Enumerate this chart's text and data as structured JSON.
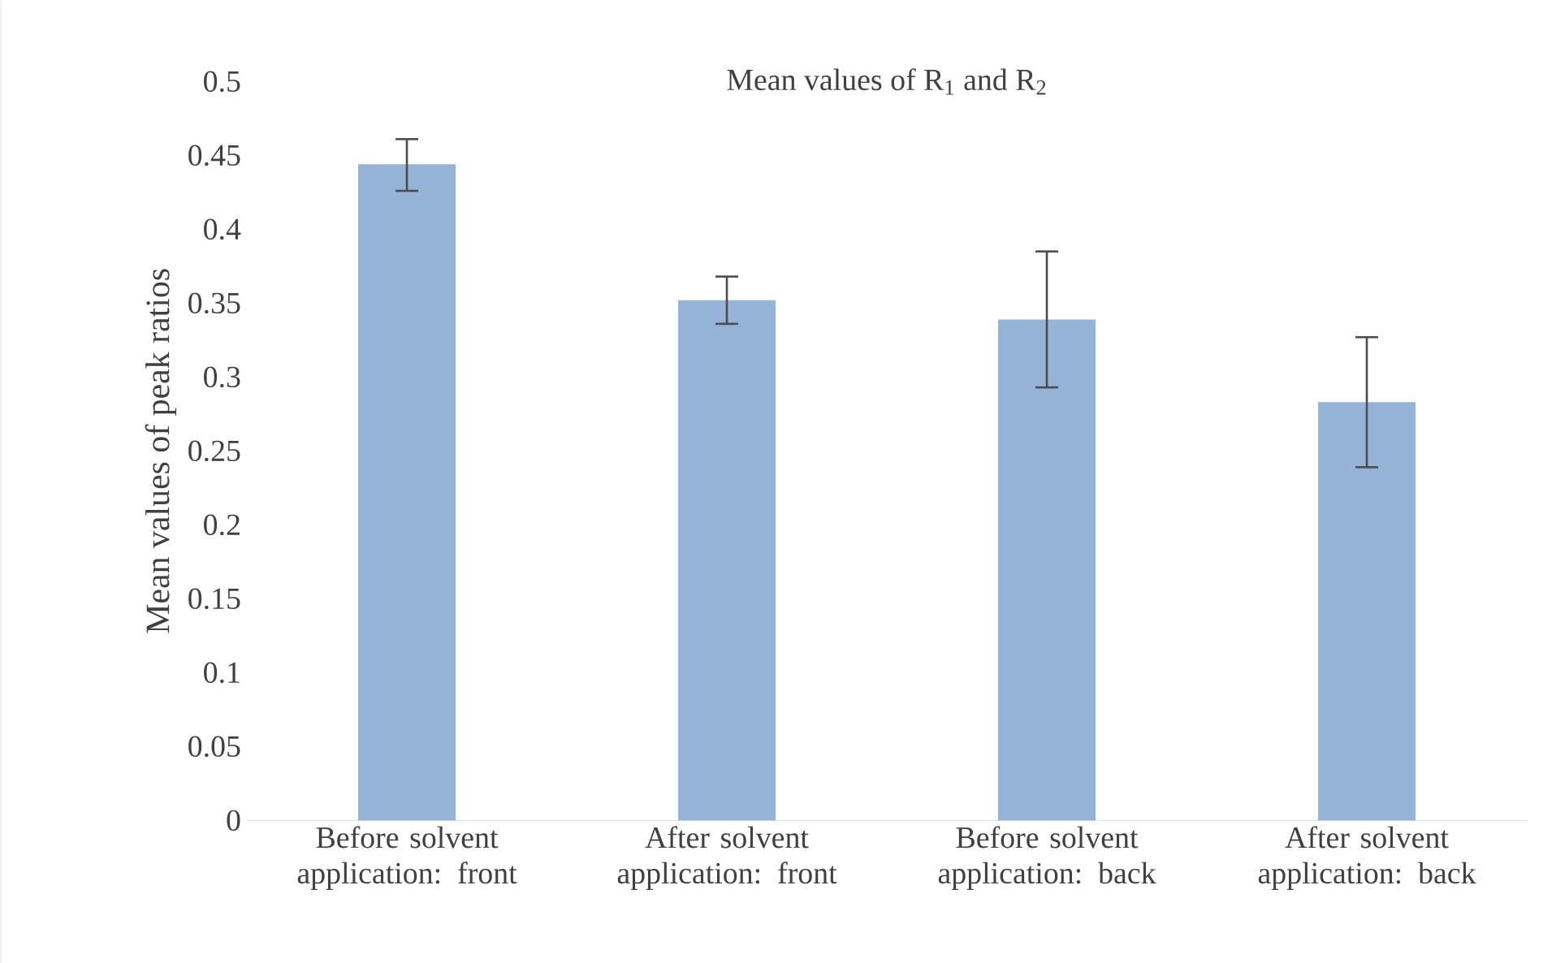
{
  "chart_data": {
    "type": "bar",
    "title": "Mean values of R$_{1}$ and R$_{2}$",
    "ylabel": "Mean values of peak ratios",
    "categories": [
      "Before solvent application: front",
      "After solvent application: front",
      "Before solvent application: back",
      "After solvent application: back"
    ],
    "values": [
      0.444,
      0.352,
      0.339,
      0.283
    ],
    "errors": [
      [
        0.426,
        0.461
      ],
      [
        0.336,
        0.368
      ],
      [
        0.293,
        0.385
      ],
      [
        0.239,
        0.327
      ]
    ],
    "color": "#95b3d7",
    "ylim": [
      0,
      0.5
    ],
    "yticks": [
      0,
      0.05,
      0.1,
      0.15,
      0.2,
      0.25,
      0.3,
      0.35,
      0.4,
      0.45,
      0.5
    ]
  }
}
